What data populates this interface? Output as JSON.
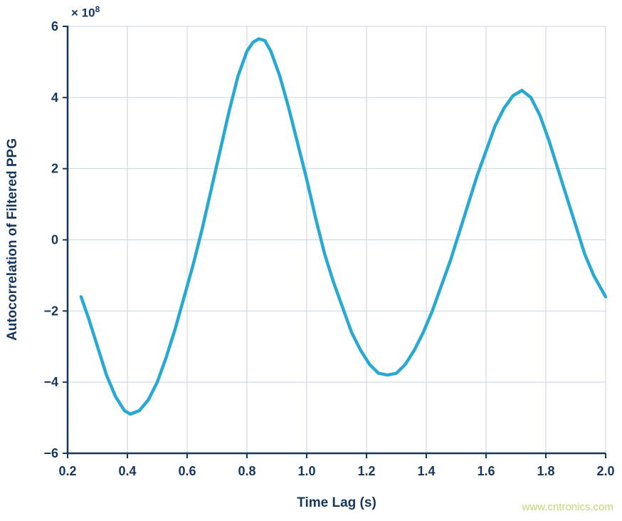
{
  "chart_data": {
    "type": "line",
    "title": "",
    "xlabel": "Time Lag (s)",
    "ylabel": "Autocorrelation of Filtered PPG",
    "offset_label": {
      "base": "× 10",
      "exponent": "8"
    },
    "xlim": [
      0.2,
      2.0
    ],
    "ylim": [
      -6,
      6
    ],
    "grid": true,
    "legend": "none",
    "y_units": "values are in multiples of 10^8",
    "xticks": [
      {
        "v": 0.2,
        "label": "0.2"
      },
      {
        "v": 0.4,
        "label": "0.4"
      },
      {
        "v": 0.6,
        "label": "0.6"
      },
      {
        "v": 0.8,
        "label": "0.8"
      },
      {
        "v": 1.0,
        "label": "1.0"
      },
      {
        "v": 1.2,
        "label": "1.2"
      },
      {
        "v": 1.4,
        "label": "1.4"
      },
      {
        "v": 1.6,
        "label": "1.6"
      },
      {
        "v": 1.8,
        "label": "1.8"
      },
      {
        "v": 2.0,
        "label": "2.0"
      }
    ],
    "yticks": [
      {
        "v": -6,
        "label": "−6"
      },
      {
        "v": -4,
        "label": "−4"
      },
      {
        "v": -2,
        "label": "−2"
      },
      {
        "v": 0,
        "label": "0"
      },
      {
        "v": 2,
        "label": "2"
      },
      {
        "v": 4,
        "label": "4"
      },
      {
        "v": 6,
        "label": "6"
      }
    ],
    "series": [
      {
        "name": "autocorrelation-of-filtered-ppg",
        "x": [
          0.245,
          0.27,
          0.3,
          0.33,
          0.36,
          0.39,
          0.41,
          0.44,
          0.47,
          0.5,
          0.53,
          0.56,
          0.59,
          0.62,
          0.65,
          0.68,
          0.71,
          0.74,
          0.77,
          0.8,
          0.82,
          0.84,
          0.86,
          0.88,
          0.91,
          0.94,
          0.97,
          1.0,
          1.03,
          1.06,
          1.09,
          1.12,
          1.15,
          1.18,
          1.21,
          1.24,
          1.27,
          1.3,
          1.33,
          1.36,
          1.39,
          1.42,
          1.45,
          1.48,
          1.51,
          1.54,
          1.57,
          1.6,
          1.63,
          1.66,
          1.69,
          1.72,
          1.75,
          1.78,
          1.81,
          1.84,
          1.87,
          1.9,
          1.93,
          1.96,
          2.0
        ],
        "y": [
          -1.6,
          -2.2,
          -3.0,
          -3.8,
          -4.4,
          -4.8,
          -4.9,
          -4.8,
          -4.5,
          -4.0,
          -3.3,
          -2.5,
          -1.6,
          -0.7,
          0.3,
          1.4,
          2.5,
          3.6,
          4.6,
          5.3,
          5.55,
          5.65,
          5.6,
          5.3,
          4.6,
          3.7,
          2.7,
          1.7,
          0.6,
          -0.4,
          -1.2,
          -1.9,
          -2.6,
          -3.1,
          -3.5,
          -3.75,
          -3.8,
          -3.75,
          -3.5,
          -3.1,
          -2.6,
          -2.0,
          -1.3,
          -0.6,
          0.2,
          1.0,
          1.8,
          2.5,
          3.2,
          3.7,
          4.05,
          4.2,
          4.0,
          3.5,
          2.8,
          2.0,
          1.2,
          0.4,
          -0.4,
          -1.0,
          -1.6
        ]
      }
    ],
    "colors": {
      "line": "#27a9d4",
      "axis": "#16365c",
      "grid": "#c9d3e0",
      "background": "#ffffff"
    }
  },
  "watermark": {
    "text": "www.cntronics.com",
    "color": "#c6d472"
  }
}
